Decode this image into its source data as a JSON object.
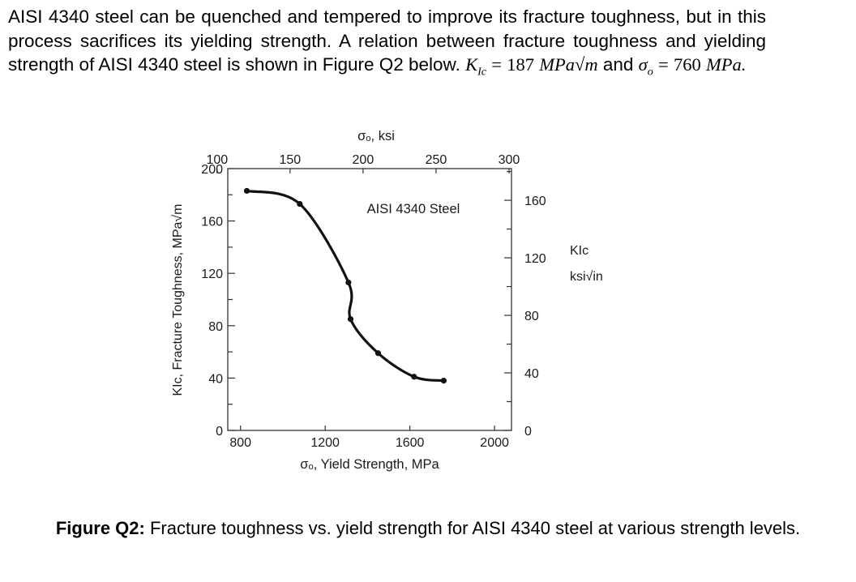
{
  "problem": {
    "line1": "AISI 4340 steel can be quenched and tempered to improve its fracture toughness, but",
    "line2": "in this process sacrifices its yielding strength. A relation between fracture toughness",
    "line3_text": "and yielding strength of AISI 4340 steel is shown in Figure Q2 below.",
    "kic_symbol": "K",
    "kic_sub": "Ic",
    "equals": "=",
    "kic_value": "187",
    "kic_unit": "MPa√m",
    "and_text": "and",
    "sigma_symbol": "σ",
    "sigma_sub": "o",
    "sigma_value": "760",
    "sigma_unit": "MPa."
  },
  "chart_data": {
    "type": "line",
    "title": "AISI 4340 Steel",
    "x_bottom": {
      "label": "σₒ, Yield Strength, MPa",
      "range": [
        740,
        2080
      ],
      "ticks": [
        800,
        1200,
        1600,
        2000
      ]
    },
    "x_top": {
      "label": "σₒ, ksi",
      "ticks": [
        100,
        150,
        200,
        250,
        300
      ]
    },
    "y_left": {
      "label": "KIc, Fracture Toughness, MPa√m",
      "range": [
        0,
        200
      ],
      "ticks": [
        0,
        40,
        80,
        120,
        160,
        200
      ]
    },
    "y_right": {
      "label_main": "KIc",
      "label_unit": "ksi√in",
      "ticks": [
        0,
        40,
        80,
        120,
        160
      ]
    },
    "series": [
      {
        "x": [
          830,
          1080,
          1310,
          1320,
          1450,
          1620,
          1760
        ],
        "y": [
          183,
          173,
          113,
          85,
          59,
          41,
          38
        ],
        "markers": true
      }
    ],
    "grid": false
  },
  "caption": {
    "label": "Figure Q2:",
    "text": "Fracture toughness vs. yield strength for AISI 4340 steel at various strength levels."
  }
}
